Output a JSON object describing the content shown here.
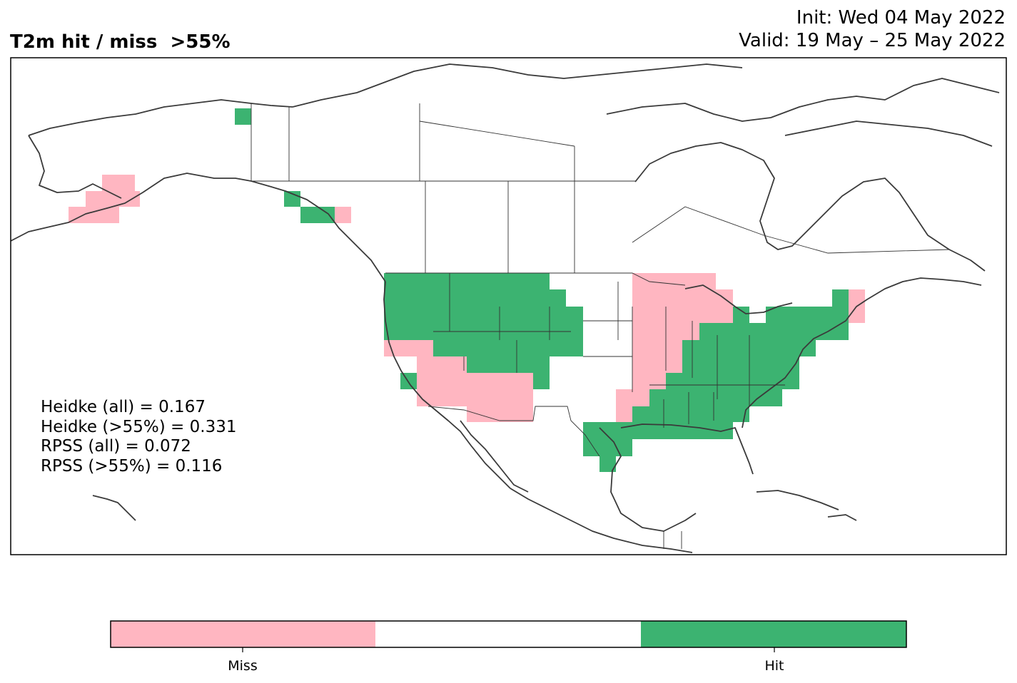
{
  "header": {
    "title": "T2m hit / miss  >55%",
    "init": "Init: Wed 04 May 2022",
    "valid": "Valid: 19 May – 25 May 2022"
  },
  "stats": [
    "Heidke (all) = 0.167",
    "Heidke (>55%) = 0.331",
    "RPSS (all) = 0.072",
    "RPSS (>55%) = 0.116"
  ],
  "legend": {
    "items": [
      {
        "label": "Miss",
        "color": "#ffb6c1"
      },
      {
        "label": "",
        "color": "#ffffff"
      },
      {
        "label": "Hit",
        "color": "#3cb371"
      }
    ]
  },
  "colors": {
    "hit": "#3cb371",
    "miss": "#ffb6c1",
    "coast": "#3a3a3a",
    "border": "#333333"
  }
}
